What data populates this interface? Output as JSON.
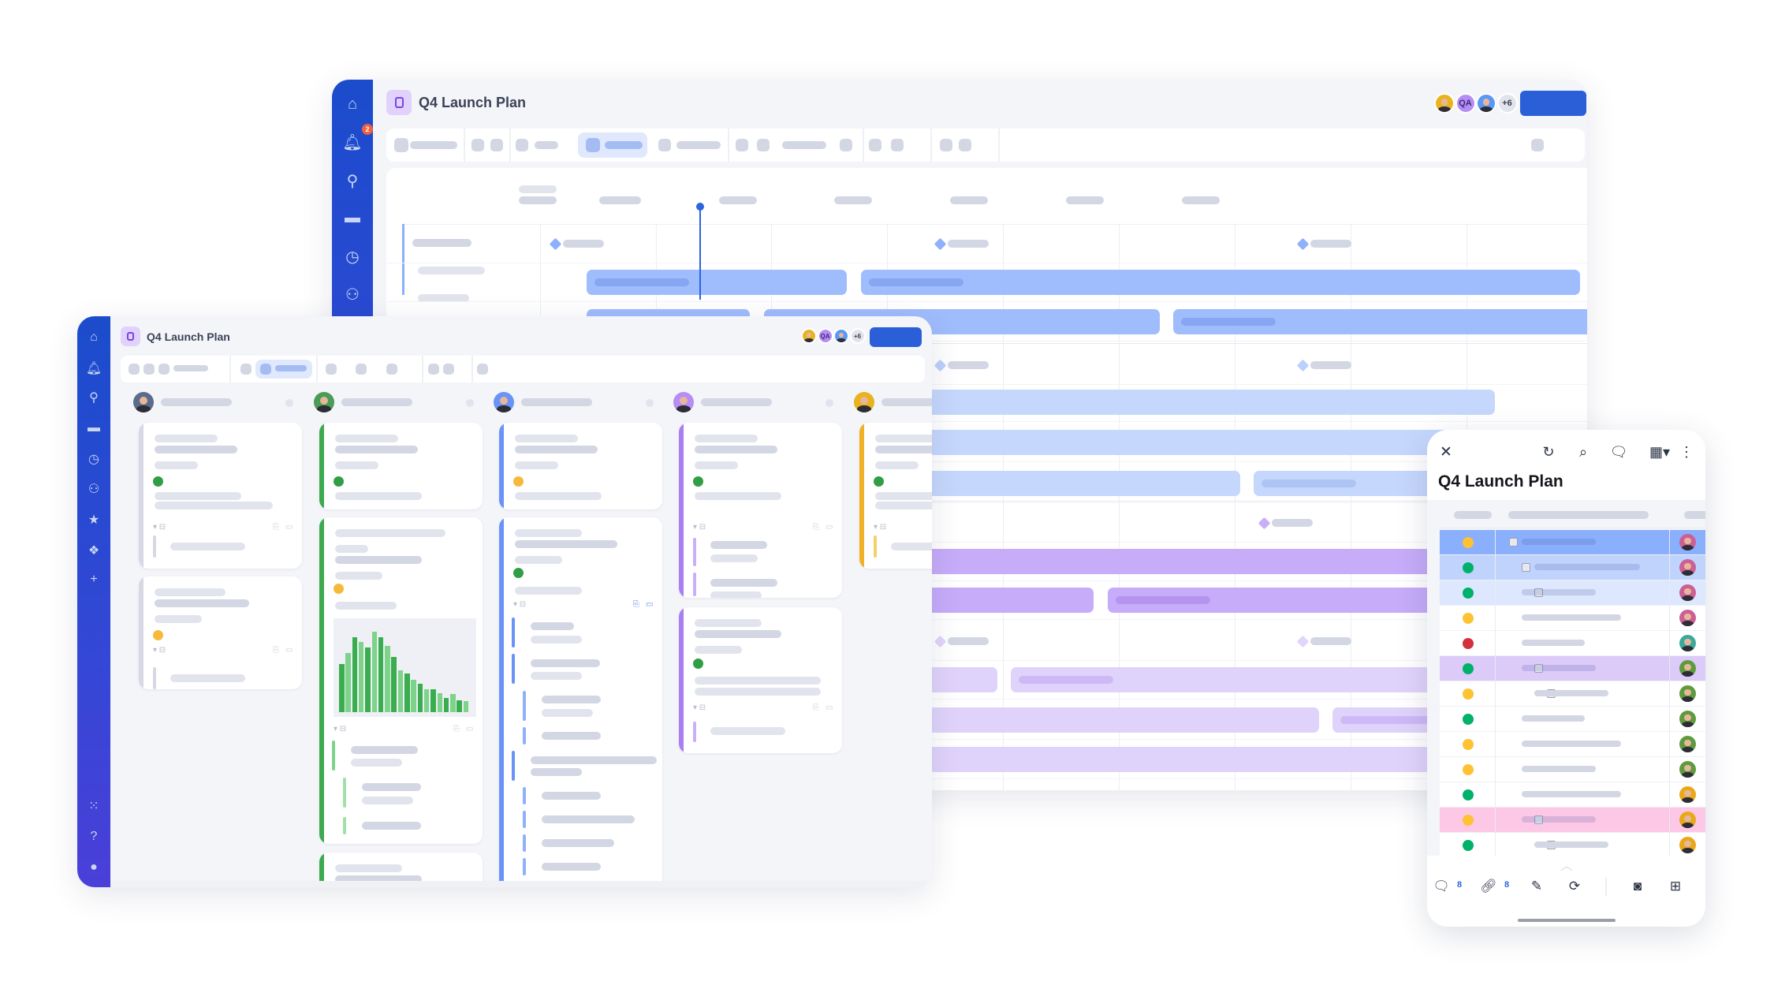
{
  "app": {
    "title": "Q4 Launch Plan"
  },
  "collaborators": {
    "qa_label": "QA",
    "more_label": "+6"
  },
  "notifications": {
    "badge_count": "2"
  },
  "mobile_panel": {
    "title": "Q4 Launch Plan",
    "comment_count": "8",
    "attachment_count": "8",
    "header_icons": [
      "close-icon",
      "refresh-icon",
      "search-icon",
      "comment-icon",
      "table-view-icon",
      "more-vertical-icon"
    ],
    "footer_icons": [
      "comment-icon",
      "attachment-icon",
      "pencil-icon",
      "sync-check-icon",
      "camera-icon",
      "calendar-add-icon"
    ],
    "rows": [
      {
        "status": "yellow",
        "highlight": "blue-strong",
        "owner": "pink"
      },
      {
        "status": "green",
        "highlight": "blue-mid",
        "owner": "pink"
      },
      {
        "status": "green",
        "highlight": "blue-light",
        "owner": "pink"
      },
      {
        "status": "yellow",
        "highlight": "none",
        "owner": "pink"
      },
      {
        "status": "red",
        "highlight": "none",
        "owner": "teal"
      },
      {
        "status": "green",
        "highlight": "purple",
        "owner": "green"
      },
      {
        "status": "yellow",
        "highlight": "none",
        "owner": "green"
      },
      {
        "status": "green",
        "highlight": "none",
        "owner": "green"
      },
      {
        "status": "yellow",
        "highlight": "none",
        "owner": "green"
      },
      {
        "status": "yellow",
        "highlight": "none",
        "owner": "green"
      },
      {
        "status": "green",
        "highlight": "none",
        "owner": "amber"
      },
      {
        "status": "yellow",
        "highlight": "pink",
        "owner": "amber"
      },
      {
        "status": "green",
        "highlight": "none",
        "owner": "amber"
      }
    ]
  },
  "sidebar_icons": {
    "back": [
      "home-icon",
      "bell-icon",
      "search-icon",
      "folder-icon",
      "clock-icon",
      "contacts-icon"
    ],
    "front": [
      "home-icon",
      "bell-icon",
      "search-icon",
      "folder-icon",
      "clock-icon",
      "contacts-icon",
      "star-icon",
      "apps-diamond-icon",
      "plus-icon"
    ],
    "front_bottom": [
      "grid-icon",
      "help-icon",
      "user-avatar-icon"
    ]
  },
  "kanban_chart": {
    "type": "bar",
    "values": [
      54,
      66,
      84,
      79,
      73,
      90,
      84,
      74,
      62,
      47,
      43,
      36,
      32,
      26,
      26,
      21,
      16,
      20,
      13,
      12
    ]
  },
  "colors": {
    "brand": "#2a5fd8",
    "sidebar": "#1b4ccc",
    "status_green": "#00b16a",
    "status_yellow": "#fec232",
    "status_red": "#d42f3c",
    "gantt_blue": "#9fbcfd",
    "gantt_blue_light": "#c6d7fd",
    "gantt_purple": "#c6acf9",
    "gantt_purple_light": "#e0d3fb",
    "row_blue_strong": "#8aaffc",
    "row_blue_mid": "#c0d3fd",
    "row_blue_light": "#dde7fd",
    "row_purple": "#dccaf9",
    "row_pink": "#fdc8e6",
    "lane_gray": "#d6d9e4",
    "lane_green": "#3daa4f",
    "lane_blue": "#6a93f7",
    "lane_purple": "#a97ff0",
    "lane_amber": "#f0b02a"
  }
}
